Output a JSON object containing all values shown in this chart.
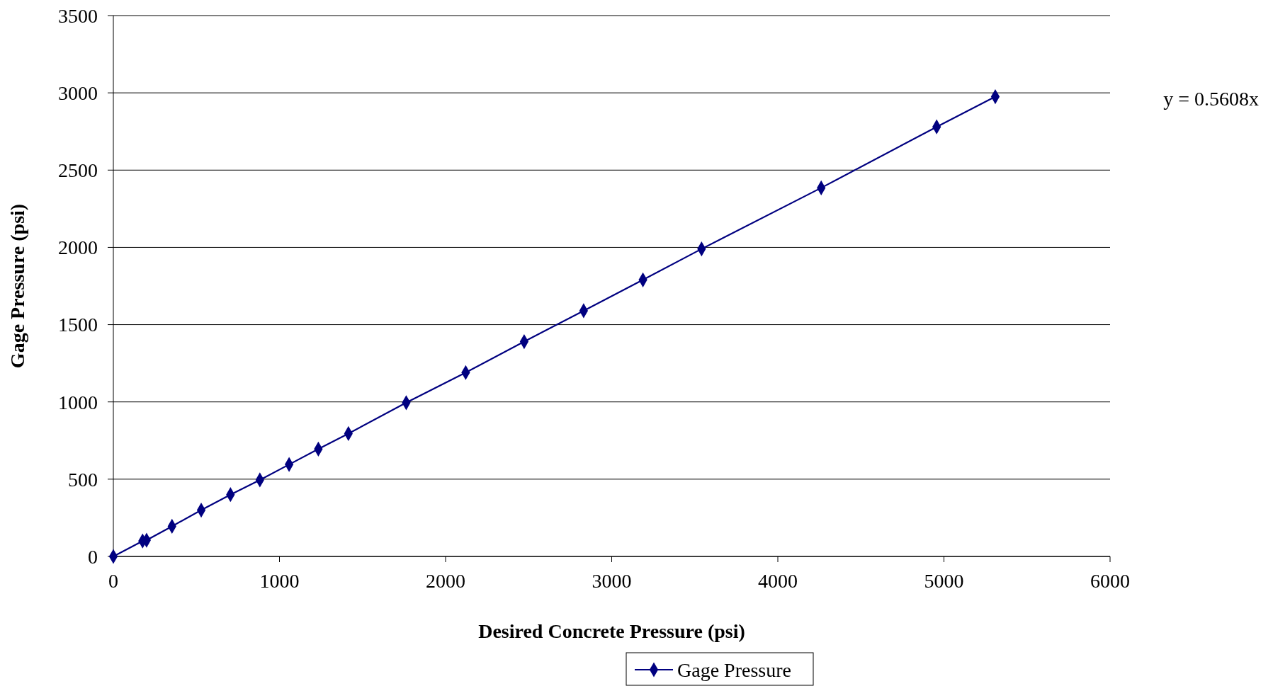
{
  "chart_data": {
    "type": "line",
    "xlabel": "Desired Concrete Pressure (psi)",
    "ylabel": "Gage Pressure (psi)",
    "annotations": [
      "y = 0.5608x"
    ],
    "series": [
      {
        "name": "Gage Pressure",
        "color": "#000080",
        "x": [
          0,
          176,
          200,
          353,
          529,
          705,
          882,
          1058,
          1234,
          1415,
          1763,
          2121,
          2473,
          2831,
          3188,
          3541,
          4261,
          4956,
          5309
        ],
        "values": [
          0,
          100,
          105,
          195,
          300,
          400,
          495,
          595,
          695,
          795,
          995,
          1190,
          1390,
          1590,
          1790,
          1990,
          2385,
          2780,
          2975
        ]
      }
    ],
    "xlim": [
      0,
      6000
    ],
    "xticks": [
      0,
      1000,
      2000,
      3000,
      4000,
      5000,
      6000
    ],
    "ylim": [
      0,
      3500
    ],
    "yticks": [
      0,
      500,
      1000,
      1500,
      2000,
      2500,
      3000,
      3500
    ],
    "grid": "y",
    "legend": "bottom",
    "marker": "diamond",
    "line_style": "solid"
  }
}
